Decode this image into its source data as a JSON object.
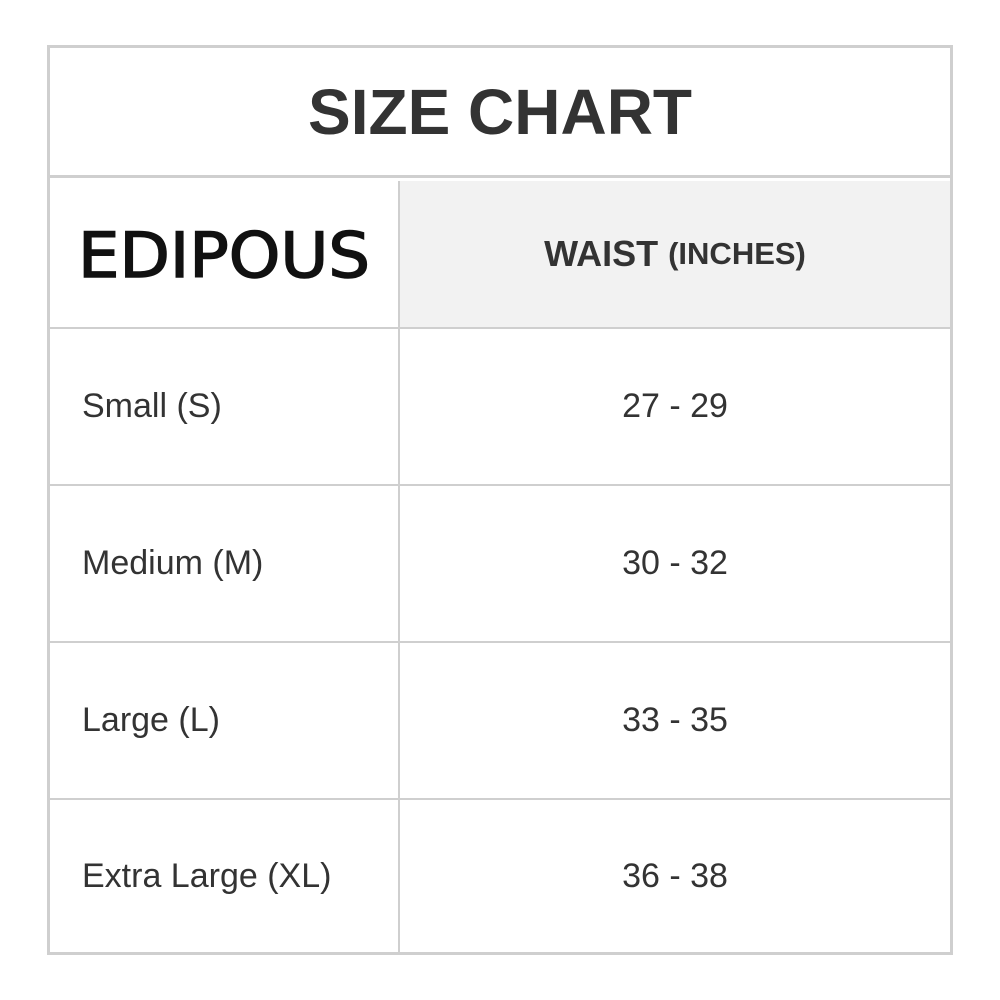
{
  "title": "SIZE CHART",
  "brand": "EDIPOUS",
  "header": {
    "measure": "WAIST",
    "unit": "(INCHES)"
  },
  "rows": [
    {
      "size": "Small (S)",
      "waist": "27 - 29"
    },
    {
      "size": "Medium (M)",
      "waist": "30 - 32"
    },
    {
      "size": "Large (L)",
      "waist": "33 - 35"
    },
    {
      "size": "Extra Large (XL)",
      "waist": "36 - 38"
    }
  ],
  "colors": {
    "border": "#cfcfcf",
    "header_bg": "#f2f2f2",
    "text": "#333333"
  }
}
